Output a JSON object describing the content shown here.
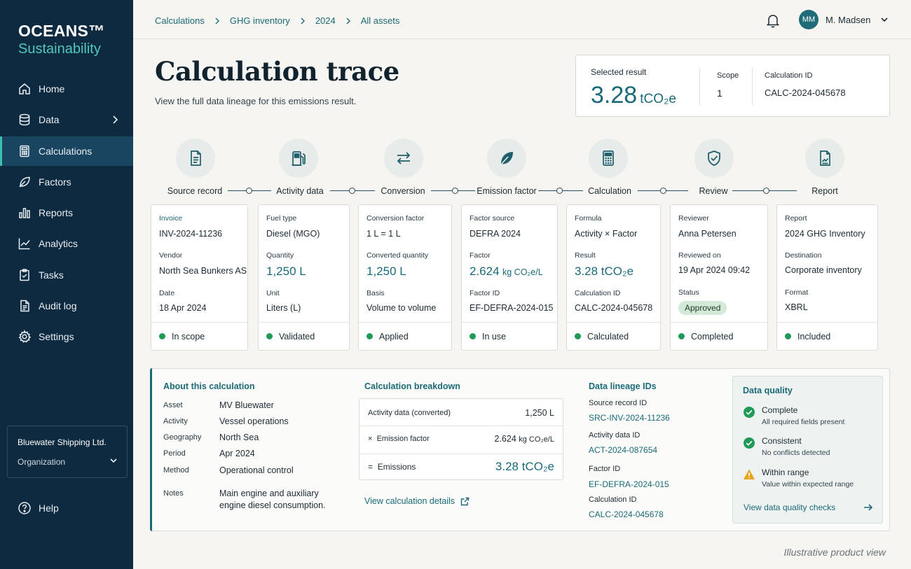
{
  "brand": {
    "line1": "OCEANS™",
    "line2": "Sustainability"
  },
  "sidebar": {
    "items": [
      {
        "label": "Home",
        "icon": "home-icon"
      },
      {
        "label": "Data",
        "icon": "database-icon"
      },
      {
        "label": "Calculations",
        "icon": "calculator-icon"
      },
      {
        "label": "Factors",
        "icon": "leaf-icon"
      },
      {
        "label": "Reports",
        "icon": "bar-chart-icon"
      },
      {
        "label": "Analytics",
        "icon": "line-chart-icon"
      },
      {
        "label": "Tasks",
        "icon": "clipboard-icon"
      },
      {
        "label": "Audit log",
        "icon": "document-icon"
      },
      {
        "label": "Settings",
        "icon": "gear-icon"
      }
    ],
    "active": "Calculations",
    "org": {
      "name": "Bluewater Shipping Ltd.",
      "role": "Organization"
    },
    "help": "Help"
  },
  "header": {
    "breadcrumb": [
      "Calculations",
      "GHG inventory",
      "2024",
      "All assets"
    ],
    "user": {
      "initials": "MM",
      "name": "M. Madsen"
    }
  },
  "page": {
    "title": "Calculation trace",
    "subtitle": "View the full data lineage for this emissions result."
  },
  "result": {
    "label": "Selected result",
    "value": "3.28",
    "unit": "tCO₂e",
    "scope_label": "Scope",
    "scope_value": "1",
    "id_label": "Calculation ID",
    "id_value": "CALC-2024-045678"
  },
  "steps": [
    {
      "label": "Source record",
      "icon": "file-icon"
    },
    {
      "label": "Activity data",
      "icon": "fuel-pump-icon"
    },
    {
      "label": "Conversion",
      "icon": "swap-arrows-icon"
    },
    {
      "label": "Emission factor",
      "icon": "leaf-icon"
    },
    {
      "label": "Calculation",
      "icon": "calculator-icon"
    },
    {
      "label": "Review",
      "icon": "shield-check-icon"
    },
    {
      "label": "Report",
      "icon": "report-icon"
    }
  ],
  "cards": [
    {
      "f1_label": "Invoice",
      "f1_value": "INV-2024-11236",
      "f2_label": "Vendor",
      "f2_value": "North Sea Bunkers AS",
      "f3_label": "Date",
      "f3_value": "18 Apr 2024",
      "status": "In scope"
    },
    {
      "f1_label": "Fuel type",
      "f1_value": "Diesel (MGO)",
      "f2_label": "Quantity",
      "f2_value": "1,250 L",
      "f3_label": "Unit",
      "f3_value": "Liters (L)",
      "status": "Validated"
    },
    {
      "f1_label": "Conversion factor",
      "f1_value": "1 L = 1 L",
      "f2_label": "Converted quantity",
      "f2_value": "1,250 L",
      "f3_label": "Basis",
      "f3_value": "Volume to volume",
      "status": "Applied"
    },
    {
      "f1_label": "Factor source",
      "f1_value": "DEFRA 2024",
      "f2_label": "Factor",
      "f2_value": "2.624",
      "f2_unit": "kg CO₂e/L",
      "f3_label": "Factor ID",
      "f3_value": "EF-DEFRA-2024-015",
      "status": "In use"
    },
    {
      "f1_label": "Formula",
      "f1_value": "Activity × Factor",
      "f2_label": "Result",
      "f2_value": "3.28 tCO₂e",
      "f3_label": "Calculation ID",
      "f3_value": "CALC-2024-045678",
      "status": "Calculated"
    },
    {
      "f1_label": "Reviewer",
      "f1_value": "Anna Petersen",
      "f2_label": "Reviewed on",
      "f2_value": "19 Apr 2024 09:42",
      "f3_label": "Status",
      "f3_value": "Approved",
      "status": "Completed"
    },
    {
      "f1_label": "Report",
      "f1_value": "2024 GHG Inventory",
      "f2_label": "Destination",
      "f2_value": "Corporate inventory",
      "f3_label": "Format",
      "f3_value": "XBRL",
      "status": "Included"
    }
  ],
  "about": {
    "title": "About this calculation",
    "rows": [
      {
        "k": "Asset",
        "v": "MV Bluewater"
      },
      {
        "k": "Activity",
        "v": "Vessel operations"
      },
      {
        "k": "Geography",
        "v": "North Sea"
      },
      {
        "k": "Period",
        "v": "Apr 2024"
      },
      {
        "k": "Method",
        "v": "Operational control"
      },
      {
        "k": "Notes",
        "v": "Main engine and auxiliary engine diesel consumption."
      }
    ]
  },
  "breakdown": {
    "title": "Calculation breakdown",
    "row1_label": "Activity data (converted)",
    "row1_value": "1,250 L",
    "row2_op": "×",
    "row2_label": "Emission factor",
    "row2_value": "2.624",
    "row2_unit": "kg CO₂e/L",
    "row3_op": "=",
    "row3_label": "Emissions",
    "row3_value": "3.28 tCO₂e",
    "link": "View calculation details"
  },
  "lineage": {
    "title": "Data lineage IDs",
    "items": [
      {
        "label": "Source record ID",
        "value": "SRC-INV-2024-11236"
      },
      {
        "label": "Activity data ID",
        "value": "ACT-2024-087654"
      },
      {
        "label": "Factor ID",
        "value": "EF-DEFRA-2024-015"
      },
      {
        "label": "Calculation ID",
        "value": "CALC-2024-045678"
      }
    ]
  },
  "quality": {
    "title": "Data quality",
    "items": [
      {
        "title": "Complete",
        "sub": "All required fields present",
        "icon": "check-circle-icon"
      },
      {
        "title": "Consistent",
        "sub": "No conflicts detected",
        "icon": "check-circle-icon"
      },
      {
        "title": "Within range",
        "sub": "Value within expected range",
        "icon": "warning-icon"
      }
    ],
    "link": "View data quality checks"
  },
  "footnote": "Illustrative product view",
  "colors": {
    "accent": "#1a6a77",
    "sidebar": "#0e2a40",
    "ok": "#1f9a57",
    "warn": "#e8a317"
  }
}
